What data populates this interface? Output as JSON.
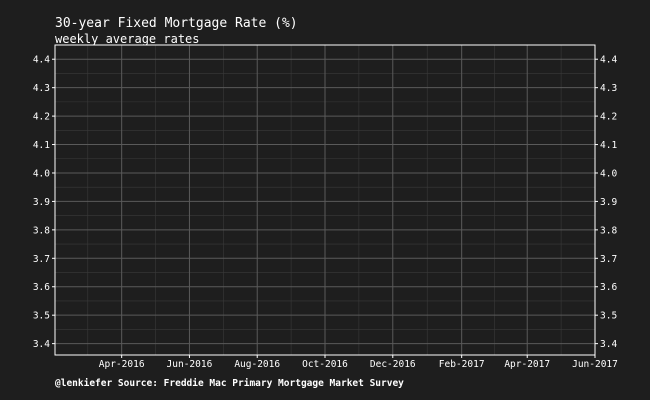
{
  "chart_data": {
    "type": "line",
    "title": "30-year Fixed Mortgage Rate (%)",
    "subtitle": "weekly average rates",
    "caption": "@lenkiefer Source: Freddie Mac Primary Mortgage Market Survey",
    "xlabel": "",
    "ylabel": "",
    "x_ticks": [
      "Apr-2016",
      "Jun-2016",
      "Aug-2016",
      "Oct-2016",
      "Dec-2016",
      "Feb-2017",
      "Apr-2017",
      "Jun-2017"
    ],
    "x_range": [
      "2016-02-01",
      "2017-06-01"
    ],
    "y_ticks": [
      "3.4",
      "3.5",
      "3.6",
      "3.7",
      "3.8",
      "3.9",
      "4.0",
      "4.1",
      "4.2",
      "4.3",
      "4.4"
    ],
    "ylim": [
      3.36,
      4.45
    ],
    "y_axis_sides": [
      "left",
      "right"
    ],
    "grid": true,
    "series": []
  },
  "colors": {
    "background": "#1e1e1e",
    "panel": "#1e1e1e",
    "grid_major": "#5a5a5a",
    "grid_minor": "#3a3a3a",
    "text": "#ffffff",
    "axis": "#ffffff"
  }
}
